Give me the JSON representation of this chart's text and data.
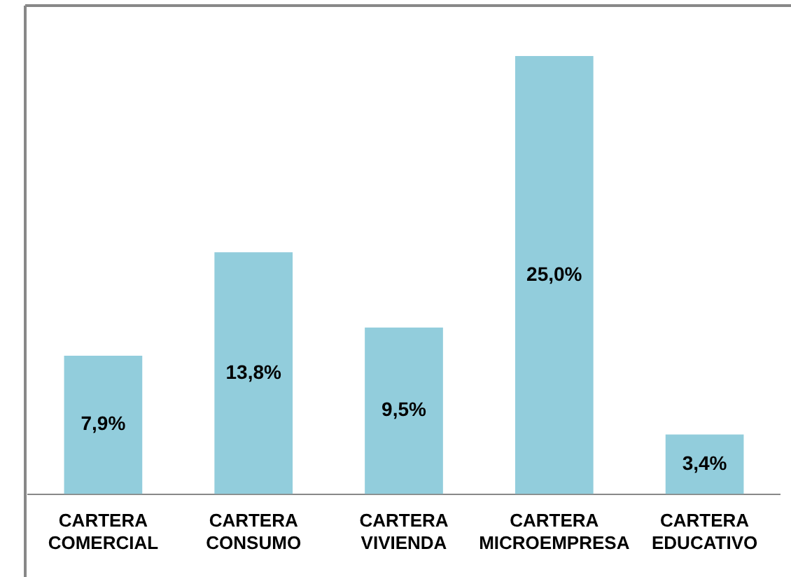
{
  "chart_data": {
    "type": "bar",
    "categories": [
      "CARTERA COMERCIAL",
      "CARTERA CONSUMO",
      "CARTERA VIVIENDA",
      "CARTERA MICROEMPRESA",
      "CARTERA EDUCATIVO"
    ],
    "values": [
      7.9,
      13.8,
      9.5,
      25.0,
      3.4
    ],
    "value_labels": [
      "7,9%",
      "13,8%",
      "9,5%",
      "25,0%",
      "3,4%"
    ],
    "color": "#92cddc",
    "grid": false,
    "legend": false
  }
}
